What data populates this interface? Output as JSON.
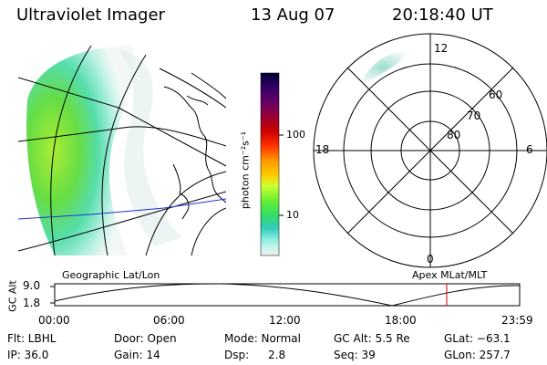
{
  "header": {
    "instrument": "Ultraviolet Imager",
    "date": "13 Aug 07",
    "time": "20:18:40 UT"
  },
  "colorbar": {
    "unit_label": "photon cm⁻²s⁻¹",
    "tick_labels": [
      "100",
      "10"
    ],
    "colors": [
      "#000033",
      "#330066",
      "#660066",
      "#990033",
      "#cc0000",
      "#ff3300",
      "#ff9900",
      "#ffcc00",
      "#ccff33",
      "#66ee33",
      "#33dd66",
      "#33ccbb",
      "#88eedd",
      "#ccf4ee",
      "#eeeeee"
    ]
  },
  "left_map": {
    "caption": "Geographic Lat/Lon"
  },
  "polar_plot": {
    "caption": "Apex MLat/MLT",
    "mlt_labels": {
      "top": "12",
      "left": "18",
      "right": "6",
      "bottom": "0"
    },
    "mlat_labels": [
      "60",
      "70",
      "80"
    ]
  },
  "altitude_plot": {
    "ylabel": "GC Alt",
    "y_ticks": [
      "9.0",
      "1.8"
    ],
    "x_ticks": [
      "00:00",
      "06:00",
      "12:00",
      "18:00",
      "23:59"
    ],
    "marker_color": "#cc0000"
  },
  "info": {
    "filter": "Flt: LBHL",
    "door": "Door: Open",
    "mode": "Mode: Normal",
    "gc_alt": "GC Alt: 5.5 Re",
    "glat": "GLat: −63.1",
    "ip": "IP: 36.0",
    "gain": "Gain: 14",
    "dsp_label": "Dsp:",
    "dsp_value": "2.8",
    "seq": "Seq: 39",
    "glon": "GLon: 257.7"
  }
}
